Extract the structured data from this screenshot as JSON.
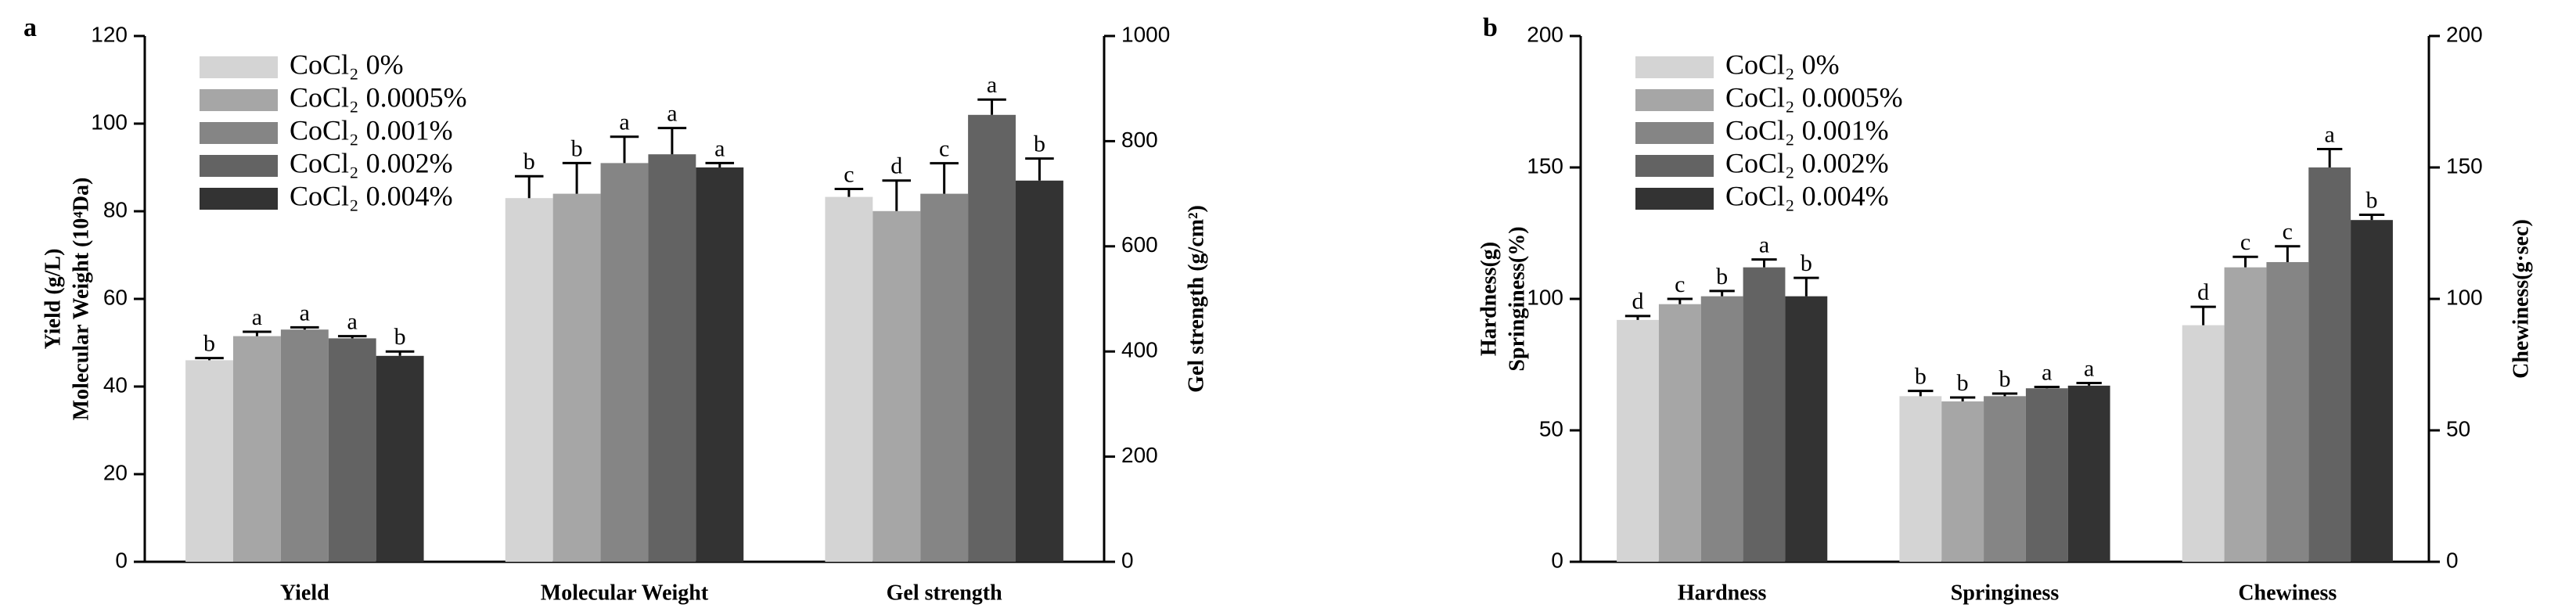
{
  "chart_data": [
    {
      "type": "bar",
      "panel": "a",
      "ylabel": [
        "Yield (g/L)",
        "Molecular Weight (10⁴Da)"
      ],
      "y2label": "Gel strength (g/cm²)",
      "categories": [
        "Yield",
        "Molecular Weight",
        "Gel strength"
      ],
      "category_axis": [
        "y",
        "y",
        "y2"
      ],
      "ylim": [
        0,
        120
      ],
      "yticks": [
        0,
        20,
        40,
        60,
        80,
        100,
        120
      ],
      "y2lim": [
        0,
        1000
      ],
      "y2ticks": [
        0,
        200,
        400,
        600,
        800,
        1000
      ],
      "legend": "upper left",
      "series": [
        {
          "name": "CoCl₂ 0%",
          "color": "#d4d4d4",
          "values": [
            46,
            83,
            694
          ],
          "errors": [
            0.5,
            5,
            15
          ],
          "letters": [
            "b",
            "b",
            "c"
          ]
        },
        {
          "name": "CoCl₂ 0.0005%",
          "color": "#a6a6a6",
          "values": [
            51.5,
            84,
            667
          ],
          "errors": [
            1,
            7,
            58
          ],
          "letters": [
            "a",
            "b",
            "d"
          ]
        },
        {
          "name": "CoCl₂ 0.001%",
          "color": "#858585",
          "values": [
            53,
            91,
            700
          ],
          "errors": [
            0.5,
            6,
            58
          ],
          "letters": [
            "a",
            "a",
            "c"
          ]
        },
        {
          "name": "CoCl₂ 0.002%",
          "color": "#636363",
          "values": [
            51,
            93,
            850
          ],
          "errors": [
            0.5,
            6,
            29
          ],
          "letters": [
            "a",
            "a",
            "a"
          ]
        },
        {
          "name": "CoCl₂ 0.004%",
          "color": "#333333",
          "values": [
            47,
            90,
            725
          ],
          "errors": [
            1,
            1,
            42
          ],
          "letters": [
            "b",
            "a",
            "b"
          ]
        }
      ]
    },
    {
      "type": "bar",
      "panel": "b",
      "ylabel": [
        "Hardness(g)",
        "Springiness(%)"
      ],
      "y2label": "Chewiness(g·sec)",
      "categories": [
        "Hardness",
        "Springiness",
        "Chewiness"
      ],
      "category_axis": [
        "y",
        "y",
        "y2"
      ],
      "ylim": [
        0,
        200
      ],
      "yticks": [
        0,
        50,
        100,
        150,
        200
      ],
      "y2lim": [
        0,
        200
      ],
      "y2ticks": [
        0,
        50,
        100,
        150,
        200
      ],
      "legend": "upper left",
      "series": [
        {
          "name": "CoCl₂ 0%",
          "color": "#d4d4d4",
          "values": [
            92,
            63,
            90
          ],
          "errors": [
            1.5,
            2,
            7
          ],
          "letters": [
            "d",
            "b",
            "d"
          ]
        },
        {
          "name": "CoCl₂ 0.0005%",
          "color": "#a6a6a6",
          "values": [
            98,
            61,
            112
          ],
          "errors": [
            2,
            1.5,
            4
          ],
          "letters": [
            "c",
            "b",
            "c"
          ]
        },
        {
          "name": "CoCl₂ 0.001%",
          "color": "#858585",
          "values": [
            101,
            63,
            114
          ],
          "errors": [
            2,
            1,
            6
          ],
          "letters": [
            "b",
            "b",
            "c"
          ]
        },
        {
          "name": "CoCl₂ 0.002%",
          "color": "#636363",
          "values": [
            112,
            66,
            150
          ],
          "errors": [
            3,
            0.5,
            7
          ],
          "letters": [
            "a",
            "a",
            "a"
          ]
        },
        {
          "name": "CoCl₂ 0.004%",
          "color": "#333333",
          "values": [
            101,
            67,
            130
          ],
          "errors": [
            7,
            1,
            2
          ],
          "letters": [
            "b",
            "a",
            "b"
          ]
        }
      ]
    }
  ]
}
